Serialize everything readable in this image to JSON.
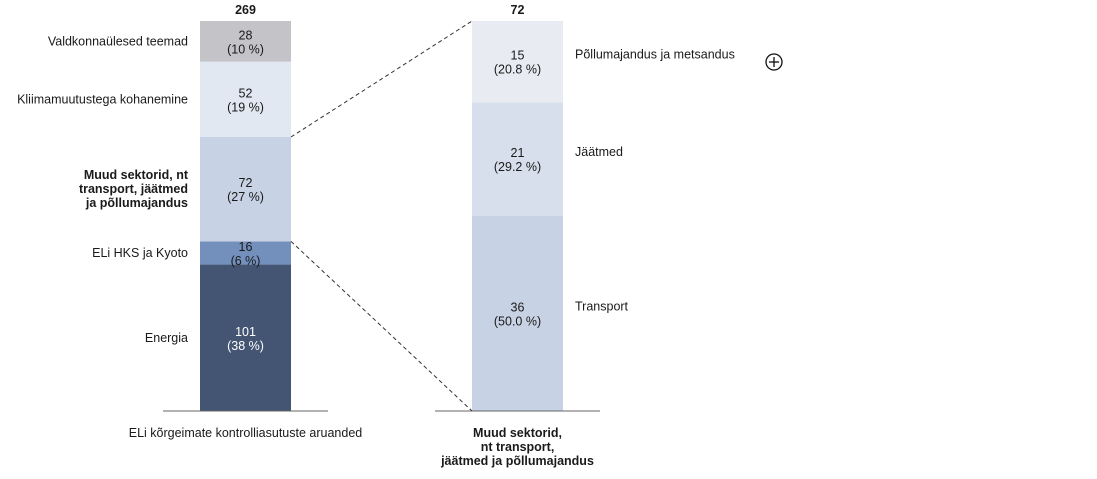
{
  "chart_data": [
    {
      "type": "bar",
      "stacked": true,
      "category": "ELi kõrgeimate kontrolliasutuste aruanded",
      "total_label": "269",
      "segments": [
        {
          "name": "Energia",
          "value": 101,
          "percent": "(38 %)",
          "color": "#435573",
          "text_color": "#ffffff",
          "bold": false
        },
        {
          "name": "ELi HKS ja Kyoto",
          "value": 16,
          "percent": "(6 %)",
          "color": "#7390bd",
          "text_color": "#1a1a1a",
          "bold": false
        },
        {
          "name": "Muud sektorid, nt|transport, jäätmed|ja põllumajandus",
          "value": 72,
          "percent": "(27 %)",
          "color": "#c7d2e4",
          "text_color": "#1a1a1a",
          "bold": true
        },
        {
          "name": "Kliimamuutustega kohanemine",
          "value": 52,
          "percent": "(19 %)",
          "color": "#e1e8f2",
          "text_color": "#1a1a1a",
          "bold": false
        },
        {
          "name": "Valdkonnaülesed teemad",
          "value": 28,
          "percent": "(10 %)",
          "color": "#c4c4c8",
          "text_color": "#1a1a1a",
          "bold": false
        }
      ]
    },
    {
      "type": "bar",
      "stacked": true,
      "category": "Muud sektorid,|nt transport,|jäätmed ja põllumajandus",
      "category_bold": true,
      "total_label": "72",
      "segments": [
        {
          "name": "Transport",
          "value": 36,
          "percent": "(50.0 %)",
          "color": "#c7d2e4",
          "text_color": "#1a1a1a"
        },
        {
          "name": "Jäätmed",
          "value": 21,
          "percent": "(29.2 %)",
          "color": "#d6dfeb",
          "text_color": "#1a1a1a"
        },
        {
          "name": "Põllumajandus ja metsandus",
          "value": 15,
          "percent": "(20.8 %)",
          "color": "#e8ecf2",
          "text_color": "#1a1a1a"
        }
      ]
    }
  ],
  "icons": {
    "zoom": "plus-circle-icon"
  }
}
